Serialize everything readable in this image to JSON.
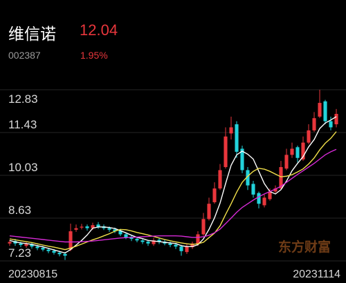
{
  "header": {
    "name": "维信诺",
    "price": "12.04",
    "code": "002387",
    "change": "1.95%"
  },
  "chart_data": {
    "type": "candlestick",
    "categories": [
      "20230815",
      null,
      null,
      null,
      null,
      null,
      null,
      null,
      null,
      null,
      null,
      null,
      null,
      null,
      null,
      null,
      null,
      null,
      null,
      null,
      null,
      null,
      null,
      null,
      null,
      null,
      null,
      null,
      null,
      null,
      null,
      null,
      null,
      null,
      null,
      null,
      null,
      null,
      null,
      null,
      null,
      null,
      null,
      null,
      null,
      null,
      null,
      null,
      null,
      null,
      null,
      null,
      null,
      null,
      null,
      null,
      null,
      null,
      null,
      "20231114"
    ],
    "open": [
      7.8,
      7.88,
      7.8,
      7.72,
      7.78,
      7.7,
      7.66,
      7.6,
      7.56,
      7.5,
      7.46,
      7.6,
      8.25,
      8.32,
      8.36,
      8.3,
      8.42,
      8.36,
      8.3,
      8.26,
      8.22,
      8.1,
      8.02,
      7.95,
      7.9,
      7.86,
      7.78,
      7.92,
      7.86,
      7.8,
      7.76,
      7.7,
      7.52,
      7.68,
      7.78,
      8.1,
      8.6,
      9.15,
      9.6,
      10.3,
      11.4,
      11.7,
      10.9,
      10.2,
      9.75,
      9.45,
      9.05,
      9.25,
      9.5,
      9.6,
      10.25,
      10.7,
      10.95,
      10.55,
      11.1,
      11.5,
      11.95,
      12.45,
      11.8,
      11.7
    ],
    "high": [
      7.92,
      7.95,
      7.86,
      7.84,
      7.83,
      7.76,
      7.72,
      7.66,
      7.62,
      7.56,
      7.52,
      8.45,
      8.42,
      8.44,
      8.42,
      8.48,
      8.5,
      8.42,
      8.36,
      8.32,
      8.28,
      8.16,
      8.08,
      8.0,
      7.96,
      7.92,
      7.98,
      7.98,
      7.92,
      7.86,
      7.82,
      7.76,
      7.78,
      7.86,
      8.2,
      8.8,
      9.3,
      9.8,
      10.4,
      11.6,
      11.95,
      11.8,
      11.0,
      10.3,
      9.85,
      9.5,
      9.4,
      9.6,
      9.7,
      10.5,
      10.9,
      11.1,
      11.0,
      11.3,
      11.7,
      12.1,
      12.83,
      12.5,
      11.95,
      12.2
    ],
    "low": [
      7.72,
      7.72,
      7.68,
      7.66,
      7.63,
      7.58,
      7.54,
      7.48,
      7.44,
      7.38,
      7.26,
      7.55,
      8.18,
      8.26,
      8.22,
      8.24,
      8.28,
      8.24,
      8.18,
      8.14,
      8.04,
      7.94,
      7.88,
      7.84,
      7.78,
      7.72,
      7.72,
      7.78,
      7.74,
      7.68,
      7.62,
      7.4,
      7.46,
      7.62,
      7.72,
      8.05,
      8.55,
      9.1,
      9.55,
      10.25,
      11.2,
      10.6,
      10.1,
      9.55,
      9.3,
      8.95,
      8.98,
      9.2,
      9.45,
      9.55,
      10.2,
      10.6,
      10.45,
      10.5,
      11.05,
      11.45,
      11.9,
      11.7,
      11.5,
      11.6
    ],
    "close": [
      7.85,
      7.8,
      7.75,
      7.78,
      7.7,
      7.65,
      7.6,
      7.55,
      7.5,
      7.45,
      7.4,
      8.2,
      8.3,
      8.35,
      8.3,
      8.4,
      8.35,
      8.3,
      8.25,
      8.2,
      8.1,
      8.0,
      7.95,
      7.9,
      7.85,
      7.8,
      7.9,
      7.85,
      7.8,
      7.75,
      7.7,
      7.55,
      7.7,
      7.8,
      8.1,
      8.6,
      9.1,
      9.6,
      10.2,
      11.3,
      11.6,
      10.8,
      10.2,
      9.7,
      9.4,
      9.1,
      9.3,
      9.5,
      9.6,
      10.3,
      10.7,
      10.9,
      10.6,
      11.1,
      11.5,
      11.9,
      12.4,
      11.8,
      11.6,
      12.04
    ],
    "up_color": "#e8363c",
    "down_color": "#22d3db",
    "series": [
      {
        "color": "#ffffff",
        "values": [
          7.9,
          7.85,
          7.82,
          7.8,
          7.77,
          7.73,
          7.69,
          7.64,
          7.59,
          7.54,
          7.49,
          7.6,
          7.75,
          7.9,
          8.08,
          8.3,
          8.34,
          8.34,
          8.32,
          8.29,
          8.22,
          8.15,
          8.07,
          8.0,
          7.96,
          7.9,
          7.88,
          7.86,
          7.84,
          7.82,
          7.8,
          7.73,
          7.7,
          7.7,
          7.76,
          7.95,
          8.26,
          8.64,
          9.12,
          9.76,
          10.36,
          10.7,
          10.82,
          10.72,
          10.56,
          10.16,
          9.76,
          9.5,
          9.42,
          9.56,
          9.84,
          10.18,
          10.42,
          10.64,
          10.96,
          11.2,
          11.56,
          11.74,
          11.84,
          11.95
        ]
      },
      {
        "color": "#f2e04a",
        "values": [
          7.95,
          7.92,
          7.89,
          7.86,
          7.83,
          7.79,
          7.75,
          7.71,
          7.68,
          7.64,
          7.6,
          7.65,
          7.71,
          7.78,
          7.85,
          7.92,
          7.98,
          8.05,
          8.12,
          8.2,
          8.26,
          8.25,
          8.21,
          8.16,
          8.12,
          8.08,
          8.03,
          7.98,
          7.93,
          7.89,
          7.85,
          7.82,
          7.79,
          7.77,
          7.79,
          7.84,
          7.99,
          8.14,
          8.38,
          8.75,
          9.1,
          9.48,
          9.8,
          10.0,
          10.16,
          10.26,
          10.23,
          10.16,
          10.07,
          9.98,
          10.0,
          10.05,
          10.14,
          10.24,
          10.4,
          10.6,
          10.86,
          11.08,
          11.24,
          11.46
        ]
      },
      {
        "color": "#d62ad6",
        "values": [
          8.05,
          8.03,
          8.01,
          7.99,
          7.97,
          7.95,
          7.93,
          7.91,
          7.89,
          7.87,
          7.85,
          7.85,
          7.85,
          7.86,
          7.87,
          7.88,
          7.9,
          7.92,
          7.94,
          7.96,
          7.98,
          7.99,
          8.0,
          8.01,
          8.02,
          8.03,
          8.04,
          8.05,
          8.05,
          8.05,
          8.05,
          8.04,
          8.02,
          8.0,
          8.0,
          8.02,
          8.07,
          8.15,
          8.27,
          8.45,
          8.63,
          8.82,
          8.98,
          9.1,
          9.22,
          9.33,
          9.42,
          9.5,
          9.58,
          9.67,
          9.8,
          9.93,
          10.06,
          10.18,
          10.3,
          10.42,
          10.56,
          10.7,
          10.8,
          10.88
        ]
      }
    ],
    "ylim": [
      7.23,
      12.83
    ],
    "yticks": [
      7.23,
      8.63,
      10.03,
      11.43,
      12.83
    ],
    "grid": true,
    "watermark": "东方财富"
  }
}
